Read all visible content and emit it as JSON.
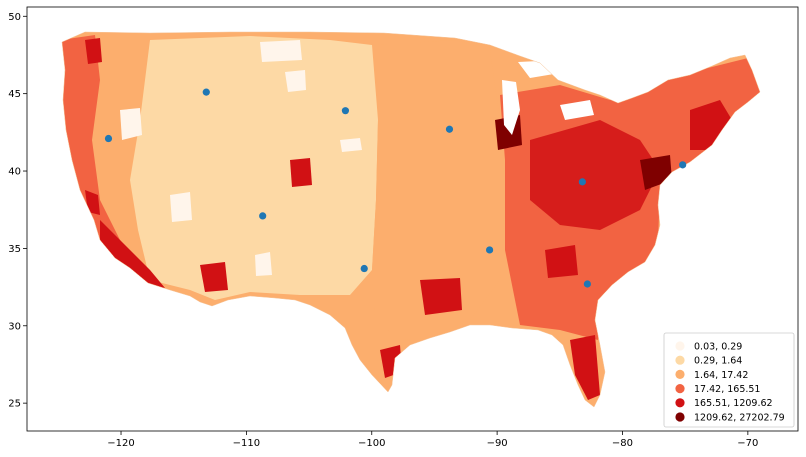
{
  "map": {
    "x_ticks": [
      {
        "value": -120,
        "label": "−120"
      },
      {
        "value": -110,
        "label": "−110"
      },
      {
        "value": -100,
        "label": "−100"
      },
      {
        "value": -90,
        "label": "−90"
      },
      {
        "value": -80,
        "label": "−80"
      },
      {
        "value": -70,
        "label": "−70"
      }
    ],
    "y_ticks": [
      {
        "value": 25,
        "label": "25"
      },
      {
        "value": 30,
        "label": "30"
      },
      {
        "value": 35,
        "label": "35"
      },
      {
        "value": 40,
        "label": "40"
      },
      {
        "value": 45,
        "label": "45"
      },
      {
        "value": 50,
        "label": "50"
      }
    ],
    "xlim": [
      -127.5,
      -66.0
    ],
    "ylim": [
      23.2,
      50.6
    ],
    "point_color": "#1f77b4",
    "points": [
      {
        "lon": -121.0,
        "lat": 42.1
      },
      {
        "lon": -113.2,
        "lat": 45.1
      },
      {
        "lon": -108.7,
        "lat": 37.1
      },
      {
        "lon": -102.1,
        "lat": 43.9
      },
      {
        "lon": -100.6,
        "lat": 33.7
      },
      {
        "lon": -93.8,
        "lat": 42.7
      },
      {
        "lon": -90.6,
        "lat": 34.9
      },
      {
        "lon": -83.2,
        "lat": 39.3
      },
      {
        "lon": -82.8,
        "lat": 32.7
      },
      {
        "lon": -75.2,
        "lat": 40.4
      }
    ],
    "legend": {
      "placement": "bottom-right",
      "entries": [
        {
          "label": "0.03,     0.29",
          "color": "#fff5eb"
        },
        {
          "label": "0.29,     1.64",
          "color": "#fdd9a5"
        },
        {
          "label": "1.64,    17.42",
          "color": "#fcae6d"
        },
        {
          "label": "17.42,   165.51",
          "color": "#f26342"
        },
        {
          "label": "165.51,  1209.62",
          "color": "#d11114"
        },
        {
          "label": "1209.62, 27202.79",
          "color": "#7f0000"
        }
      ]
    }
  }
}
